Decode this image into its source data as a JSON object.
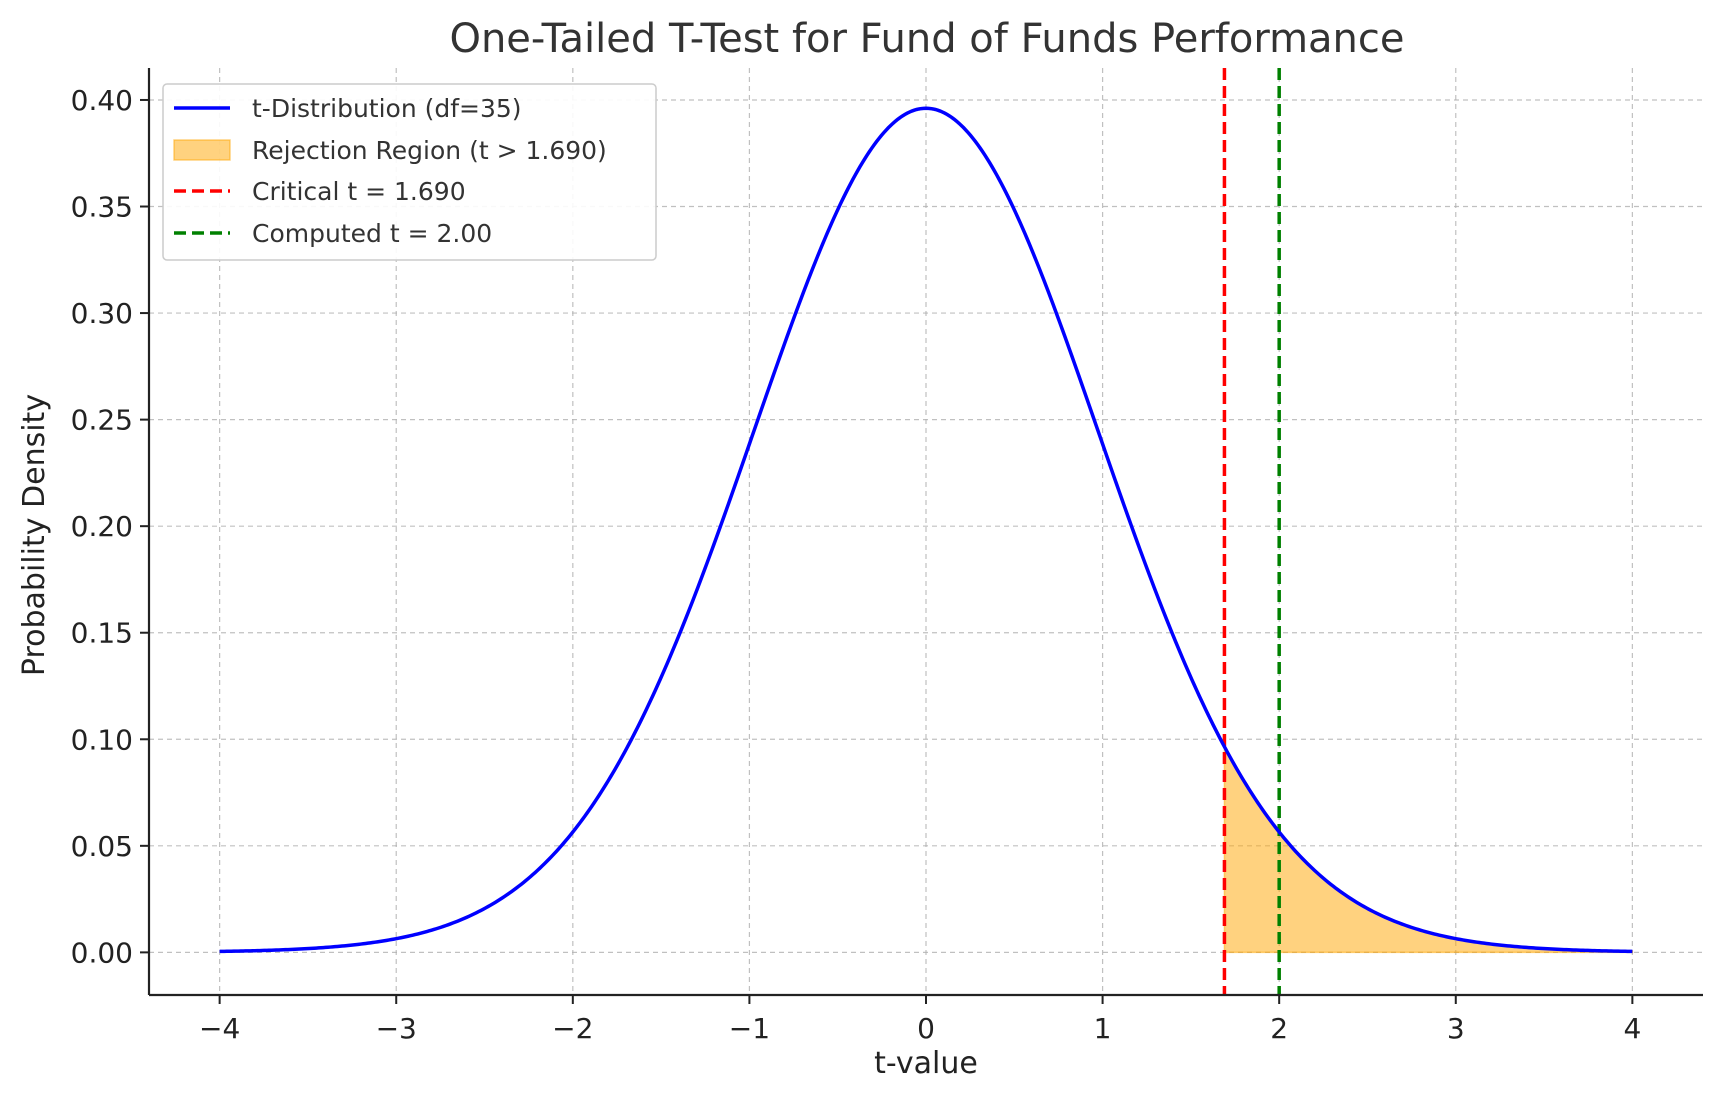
{
  "chart_data": {
    "type": "line",
    "title": "One-Tailed T-Test for Fund of Funds Performance",
    "xlabel": "t-value",
    "ylabel": "Probability Density",
    "xlim": [
      -4.4,
      4.4
    ],
    "ylim": [
      -0.02,
      0.415
    ],
    "x_ticks": [
      -4,
      -3,
      -2,
      -1,
      0,
      1,
      2,
      3,
      4
    ],
    "x_tick_labels": [
      "−4",
      "−3",
      "−2",
      "−1",
      "0",
      "1",
      "2",
      "3",
      "4"
    ],
    "y_ticks": [
      0.0,
      0.05,
      0.1,
      0.15,
      0.2,
      0.25,
      0.3,
      0.35,
      0.4
    ],
    "y_tick_labels": [
      "0.00",
      "0.05",
      "0.10",
      "0.15",
      "0.20",
      "0.25",
      "0.30",
      "0.35",
      "0.40"
    ],
    "grid": true,
    "legend_position": "top-left",
    "series": [
      {
        "name": "t-Distribution (df=35)",
        "kind": "line",
        "color": "#0000ff",
        "df": 35,
        "x": [
          -4,
          -3.5,
          -3,
          -2.5,
          -2,
          -1.5,
          -1,
          -0.5,
          0,
          0.5,
          1,
          1.5,
          1.69,
          2,
          2.5,
          3,
          3.5,
          4
        ],
        "y": [
          0.0003,
          0.0013,
          0.0058,
          0.0186,
          0.0549,
          0.1301,
          0.2387,
          0.3499,
          0.3961,
          0.3499,
          0.2387,
          0.1301,
          0.0961,
          0.0549,
          0.0186,
          0.0058,
          0.0013,
          0.0003
        ]
      },
      {
        "name": "Rejection Region (t > 1.690)",
        "kind": "area",
        "color": "#ffa500",
        "from": 1.69,
        "to": 4
      },
      {
        "name": "Critical t = 1.690",
        "kind": "vline",
        "color": "#ff0000",
        "x": 1.69
      },
      {
        "name": "Computed t = 2.00",
        "kind": "vline",
        "color": "#008000",
        "x": 2.0
      }
    ]
  }
}
